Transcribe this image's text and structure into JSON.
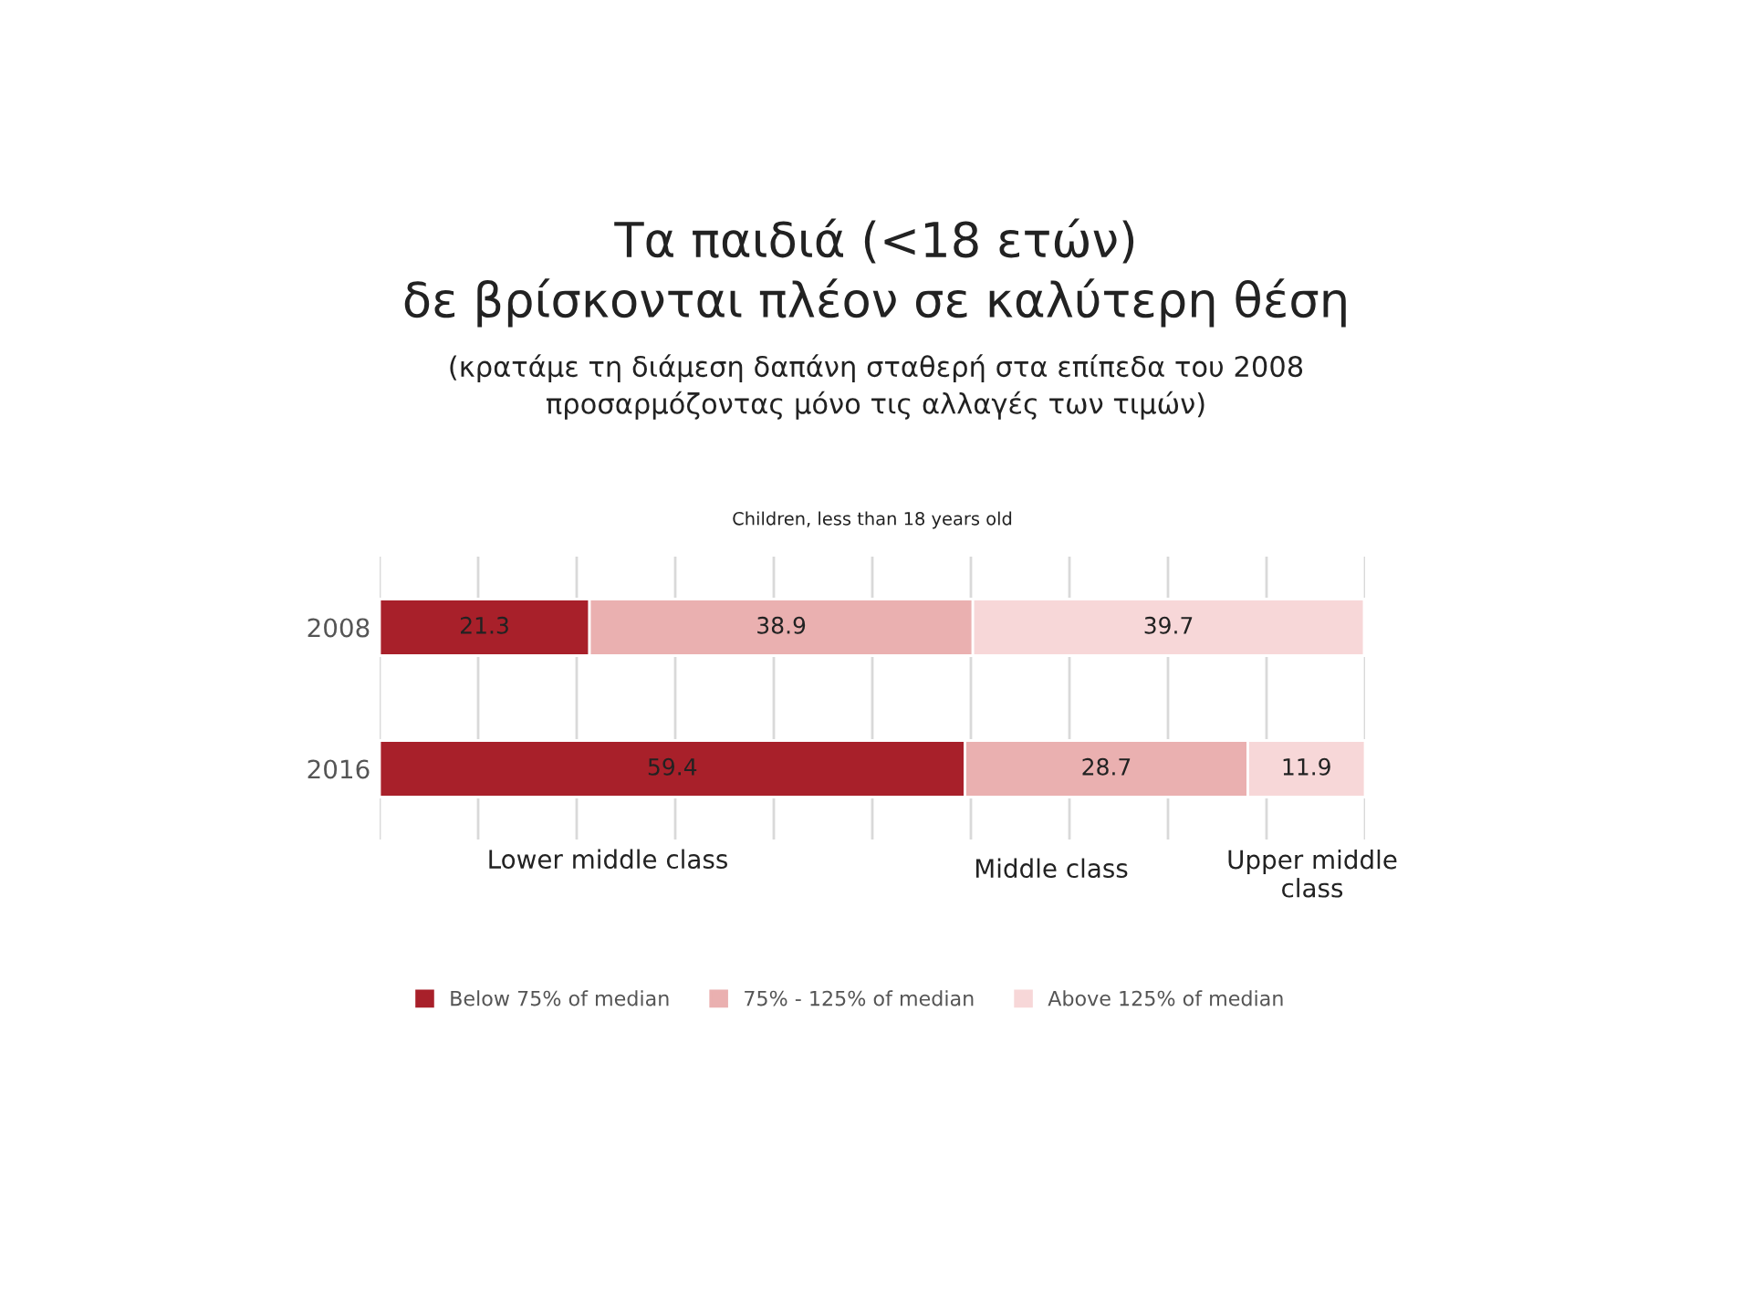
{
  "chart_data": {
    "type": "bar",
    "orientation": "horizontal",
    "stacked": true,
    "title": "Τα παιδιά (<18 ετών)\nδε βρίσκονται πλέον σε καλύτερη θέση",
    "subtitle": "(κρατάμε τη διάμεση δαπάνη σταθερή στα επίπεδα του 2008\nπροσαρμόζοντας μόνο τις αλλαγές των τιμών)",
    "categories": [
      "2008",
      "2016"
    ],
    "series": [
      {
        "name": "Below 75% of median",
        "color": "#a8202a",
        "values": [
          21.3,
          59.4
        ]
      },
      {
        "name": "75% - 125% of median",
        "color": "#eab0b0",
        "values": [
          38.9,
          28.7
        ]
      },
      {
        "name": "Above 125% of median",
        "color": "#f7d7d8",
        "values": [
          39.7,
          11.9
        ]
      }
    ],
    "xlim": [
      0,
      100
    ],
    "xticks": [
      {
        "value": 0,
        "label": null
      },
      {
        "value": 10,
        "label": null
      },
      {
        "value": 20,
        "label": null
      },
      {
        "value": 30,
        "label": null
      },
      {
        "value": 40,
        "label": null
      },
      {
        "value": 50,
        "label": null
      },
      {
        "value": 60,
        "label": null
      },
      {
        "value": 70,
        "label": null
      },
      {
        "value": 80,
        "label": null
      },
      {
        "value": 90,
        "label": null
      },
      {
        "value": 100,
        "label": null
      }
    ],
    "tick_labels": "y",
    "grid": "x",
    "data_labels": true,
    "legend": "bottom",
    "annotations": [
      "Children, less than 18 years old",
      "Lower middle class",
      "Middle class",
      "Upper middle\nclass"
    ]
  }
}
